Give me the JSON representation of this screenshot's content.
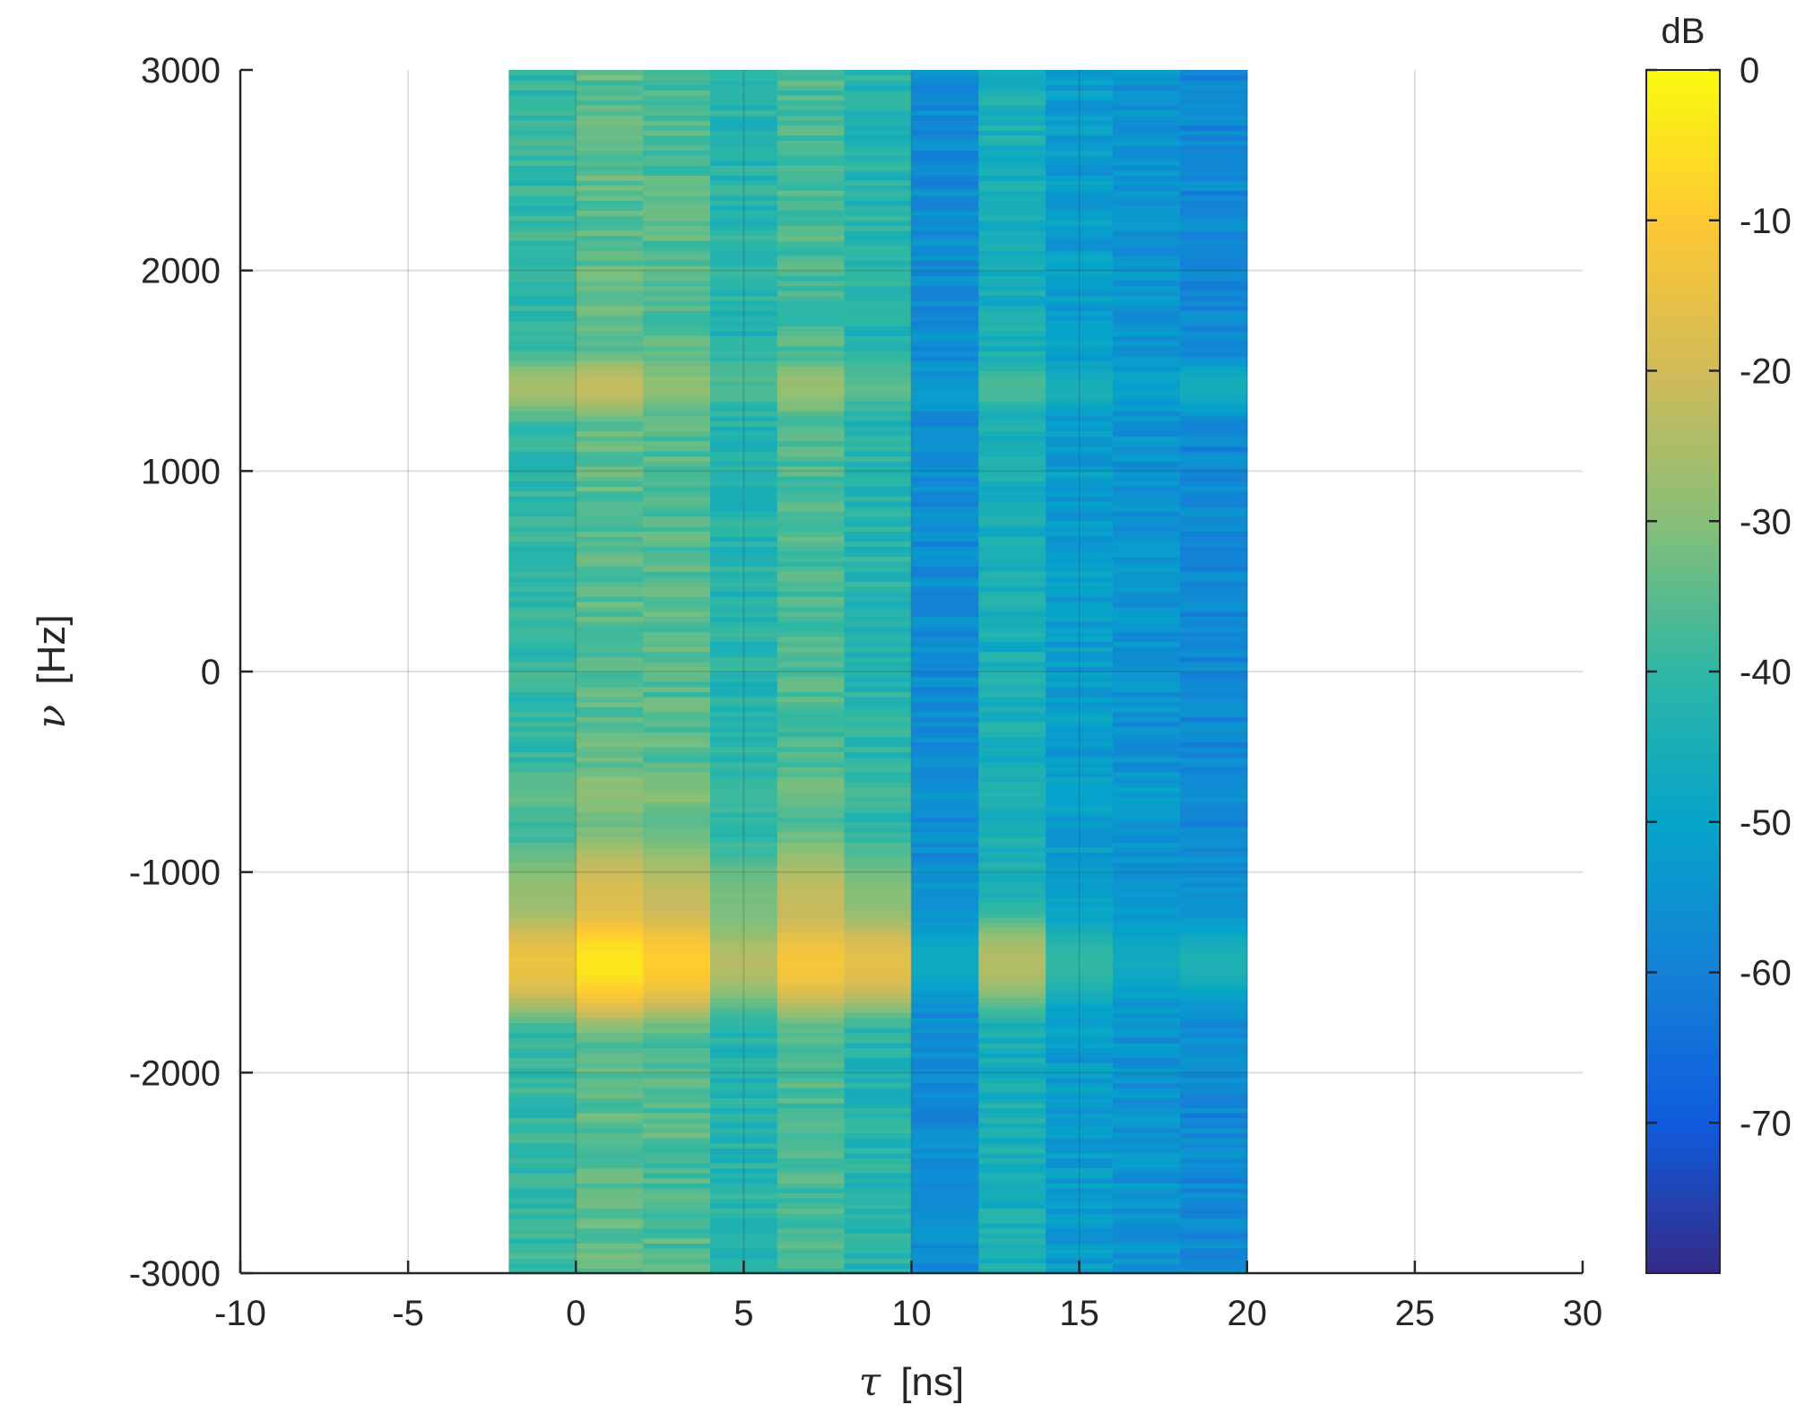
{
  "chart_data": {
    "type": "heatmap",
    "title": "",
    "xlabel": {
      "symbol": "τ",
      "unit": "[ns]"
    },
    "ylabel": {
      "symbol": "ν",
      "unit": "[Hz]"
    },
    "xlim": [
      -10,
      30
    ],
    "ylim": [
      -3000,
      3000
    ],
    "xticks": [
      -10,
      -5,
      0,
      5,
      10,
      15,
      20,
      25,
      30
    ],
    "yticks": [
      -3000,
      -2000,
      -1000,
      0,
      1000,
      2000,
      3000
    ],
    "grid": true,
    "data_extent": {
      "tau_min_ns": -2,
      "tau_max_ns": 20,
      "nu_min_hz": -3000,
      "nu_max_hz": 3000
    },
    "delay_bins_ns": [
      -2,
      0,
      2,
      4,
      6,
      8,
      10,
      12,
      14,
      16,
      18,
      20
    ],
    "column_background_db": [
      -40,
      -35,
      -36,
      -42,
      -37,
      -42,
      -57,
      -45,
      -52,
      -55,
      -58
    ],
    "doppler_components": [
      {
        "nu_hz": -1450,
        "bandwidth_hz": 90,
        "peak_db": [
          -14,
          -4,
          -9,
          -24,
          -12,
          -16,
          -48,
          -24,
          -40,
          -48,
          -44
        ]
      },
      {
        "nu_hz": -1150,
        "bandwidth_hz": 130,
        "peak_db": [
          -28,
          -18,
          -22,
          -32,
          -22,
          -30,
          -58,
          -48,
          -55,
          -58,
          -58
        ]
      },
      {
        "nu_hz": 1420,
        "bandwidth_hz": 60,
        "peak_db": [
          -26,
          -22,
          -30,
          -38,
          -28,
          -36,
          -55,
          -38,
          -46,
          -52,
          -46
        ]
      },
      {
        "nu_hz": -600,
        "bandwidth_hz": 60,
        "peak_db": [
          -36,
          -30,
          -32,
          -40,
          -34,
          -40,
          -58,
          -45,
          -52,
          -55,
          -58
        ]
      }
    ],
    "colorbar": {
      "label": "dB",
      "range": [
        -80,
        0
      ],
      "tick_values": [
        0,
        -10,
        -20,
        -30,
        -40,
        -50,
        -60,
        -70
      ],
      "tick_labels": [
        "0",
        "-10",
        "-20",
        "-30",
        "-40",
        "-50",
        "-60",
        "-70"
      ],
      "colormap": "parula",
      "colormap_stops": [
        "#352a87",
        "#0f5cdd",
        "#1481d6",
        "#06a4ca",
        "#2eb7a4",
        "#87bf77",
        "#d1bb59",
        "#fec832",
        "#f9fb0e"
      ]
    }
  }
}
